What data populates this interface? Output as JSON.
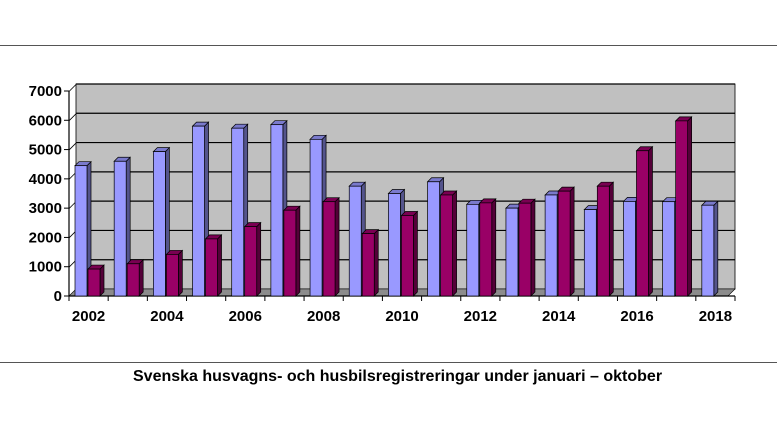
{
  "caption": "Svenska husvagns- och husbilsregistreringar under januari – oktober",
  "chart_data": {
    "type": "bar",
    "x": [
      2002,
      2003,
      2004,
      2005,
      2006,
      2007,
      2008,
      2009,
      2010,
      2011,
      2012,
      2013,
      2014,
      2015,
      2016,
      2017,
      2018
    ],
    "x_tick_labels": [
      "2002",
      "2004",
      "2006",
      "2008",
      "2010",
      "2012",
      "2014",
      "2016",
      "2018"
    ],
    "series": [
      {
        "color": "#9999ff",
        "values": [
          4450,
          4600,
          4930,
          5800,
          5730,
          5850,
          5350,
          3750,
          3500,
          3900,
          3130,
          3000,
          3450,
          2950,
          3230,
          3220,
          3100
        ]
      },
      {
        "color": "#990066",
        "values": [
          920,
          1100,
          1420,
          1950,
          2370,
          2930,
          3220,
          2130,
          2750,
          3450,
          3180,
          3170,
          3580,
          3750,
          4960,
          5980,
          null
        ]
      }
    ],
    "ylim": [
      0,
      7000
    ],
    "y_ticks": [
      0,
      1000,
      2000,
      3000,
      4000,
      5000,
      6000,
      7000
    ],
    "grid": true,
    "plot_background": "#c0c0c0",
    "three_d": true
  }
}
